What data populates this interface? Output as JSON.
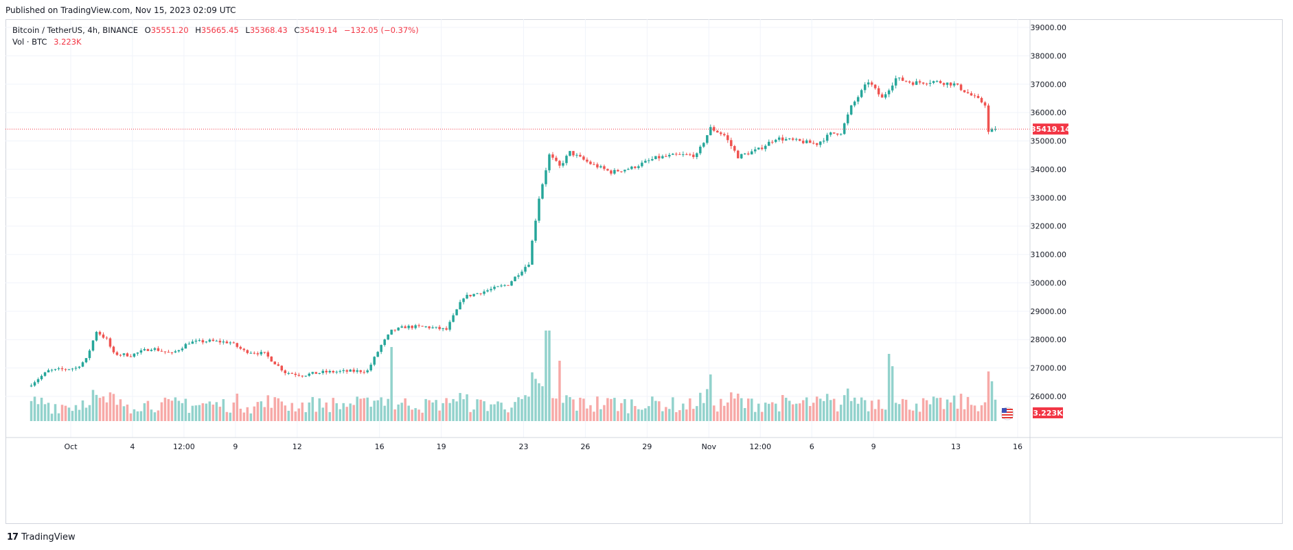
{
  "published": "Published on TradingView.com, Nov 15, 2023 02:09 UTC",
  "legend": {
    "symbol": "Bitcoin / TetherUS, 4h, BINANCE",
    "o_label": "O",
    "o": "35551.20",
    "h_label": "H",
    "h": "35665.45",
    "l_label": "L",
    "l": "35368.43",
    "c_label": "C",
    "c": "35419.14",
    "change": "−132.05 (−0.37%)",
    "vol_label": "Vol · BTC",
    "vol": "3.223K"
  },
  "footer": {
    "brand": "TradingView",
    "logo_mark": "17"
  },
  "colors": {
    "up": "#26a69a",
    "down": "#ef5350",
    "up_vol": "#92d2cc",
    "down_vol": "#f7a9a7",
    "last_price_bg": "#f23645",
    "grid": "#f0f3fa",
    "axis_text": "#131722"
  },
  "chart_data": {
    "type": "candlestick",
    "title": "Bitcoin / TetherUS, 4h, BINANCE",
    "interval": "4h",
    "last_price": 35419.14,
    "last_price_label": "35419.14",
    "last_volume_label": "3.223K",
    "ylim": [
      25100,
      39400
    ],
    "y_ticks": [
      26000,
      27000,
      28000,
      29000,
      30000,
      31000,
      32000,
      33000,
      34000,
      35000,
      36000,
      37000,
      38000,
      39000
    ],
    "y_tick_labels": [
      "26000.00",
      "27000.00",
      "28000.00",
      "29000.00",
      "30000.00",
      "31000.00",
      "32000.00",
      "33000.00",
      "34000.00",
      "35000.00",
      "36000.00",
      "37000.00",
      "38000.00",
      "39000.00"
    ],
    "x_tick_labels": [
      {
        "label": "Oct",
        "date": "2023-10-01 00:00"
      },
      {
        "label": "4",
        "date": "2023-10-04 00:00"
      },
      {
        "label": "12:00",
        "date": "2023-10-06 12:00"
      },
      {
        "label": "9",
        "date": "2023-10-09 00:00"
      },
      {
        "label": "12",
        "date": "2023-10-12 00:00"
      },
      {
        "label": "16",
        "date": "2023-10-16 00:00"
      },
      {
        "label": "19",
        "date": "2023-10-19 00:00"
      },
      {
        "label": "23",
        "date": "2023-10-23 00:00"
      },
      {
        "label": "26",
        "date": "2023-10-26 00:00"
      },
      {
        "label": "29",
        "date": "2023-10-29 00:00"
      },
      {
        "label": "Nov",
        "date": "2023-11-01 00:00"
      },
      {
        "label": "12:00",
        "date": "2023-11-03 12:00"
      },
      {
        "label": "6",
        "date": "2023-11-06 00:00"
      },
      {
        "label": "9",
        "date": "2023-11-09 00:00"
      },
      {
        "label": "13",
        "date": "2023-11-13 00:00"
      },
      {
        "label": "16",
        "date": "2023-11-16 00:00"
      }
    ],
    "period_start": "2023-09-29 00:00",
    "period_end": "2023-11-15 00:00",
    "trend_anchors": [
      [
        "2023-09-29 00:00",
        26350
      ],
      [
        "2023-09-30 00:00",
        26900
      ],
      [
        "2023-10-01 08:00",
        27000
      ],
      [
        "2023-10-01 20:00",
        27300
      ],
      [
        "2023-10-02 08:00",
        28300
      ],
      [
        "2023-10-02 20:00",
        28000
      ],
      [
        "2023-10-03 04:00",
        27500
      ],
      [
        "2023-10-04 00:00",
        27450
      ],
      [
        "2023-10-05 00:00",
        27700
      ],
      [
        "2023-10-06 00:00",
        27500
      ],
      [
        "2023-10-06 20:00",
        27900
      ],
      [
        "2023-10-07 20:00",
        27950
      ],
      [
        "2023-10-08 20:00",
        27900
      ],
      [
        "2023-10-09 12:00",
        27600
      ],
      [
        "2023-10-10 12:00",
        27500
      ],
      [
        "2023-10-11 12:00",
        26850
      ],
      [
        "2023-10-12 08:00",
        26750
      ],
      [
        "2023-10-13 08:00",
        26850
      ],
      [
        "2023-10-14 12:00",
        26880
      ],
      [
        "2023-10-15 12:00",
        26900
      ],
      [
        "2023-10-16 04:00",
        27800
      ],
      [
        "2023-10-16 16:00",
        28300
      ],
      [
        "2023-10-17 08:00",
        28450
      ],
      [
        "2023-10-18 08:00",
        28450
      ],
      [
        "2023-10-19 08:00",
        28350
      ],
      [
        "2023-10-20 04:00",
        29500
      ],
      [
        "2023-10-21 04:00",
        29700
      ],
      [
        "2023-10-22 08:00",
        29950
      ],
      [
        "2023-10-23 08:00",
        30700
      ],
      [
        "2023-10-23 20:00",
        33000
      ],
      [
        "2023-10-24 08:00",
        34500
      ],
      [
        "2023-10-24 20:00",
        34100
      ],
      [
        "2023-10-25 08:00",
        34600
      ],
      [
        "2023-10-25 20:00",
        34400
      ],
      [
        "2023-10-26 08:00",
        34200
      ],
      [
        "2023-10-27 08:00",
        33900
      ],
      [
        "2023-10-28 08:00",
        34050
      ],
      [
        "2023-10-29 12:00",
        34400
      ],
      [
        "2023-10-30 12:00",
        34500
      ],
      [
        "2023-10-31 12:00",
        34500
      ],
      [
        "2023-11-01 04:00",
        35450
      ],
      [
        "2023-11-01 20:00",
        35200
      ],
      [
        "2023-11-02 12:00",
        34450
      ],
      [
        "2023-11-03 12:00",
        34700
      ],
      [
        "2023-11-04 08:00",
        35100
      ],
      [
        "2023-11-05 08:00",
        35000
      ],
      [
        "2023-11-06 08:00",
        34900
      ],
      [
        "2023-11-07 00:00",
        35250
      ],
      [
        "2023-11-07 12:00",
        35300
      ],
      [
        "2023-11-08 00:00",
        36200
      ],
      [
        "2023-11-08 20:00",
        37100
      ],
      [
        "2023-11-09 12:00",
        36500
      ],
      [
        "2023-11-10 04:00",
        37200
      ],
      [
        "2023-11-11 00:00",
        37050
      ],
      [
        "2023-11-12 00:00",
        37100
      ],
      [
        "2023-11-13 00:00",
        37000
      ],
      [
        "2023-11-13 20:00",
        36600
      ],
      [
        "2023-11-14 12:00",
        36300
      ],
      [
        "2023-11-14 16:00",
        35300
      ],
      [
        "2023-11-15 00:00",
        35419
      ]
    ],
    "volume_scale_max": 3500,
    "volume_spikes": [
      [
        "2023-10-16 12:00",
        2700
      ],
      [
        "2023-10-24 00:00",
        3300
      ],
      [
        "2023-10-24 04:00",
        3300
      ],
      [
        "2023-10-24 16:00",
        2200
      ],
      [
        "2023-11-01 00:00",
        1700
      ],
      [
        "2023-11-09 16:00",
        2450
      ],
      [
        "2023-11-09 20:00",
        2000
      ],
      [
        "2023-11-14 16:00",
        1450
      ]
    ]
  }
}
